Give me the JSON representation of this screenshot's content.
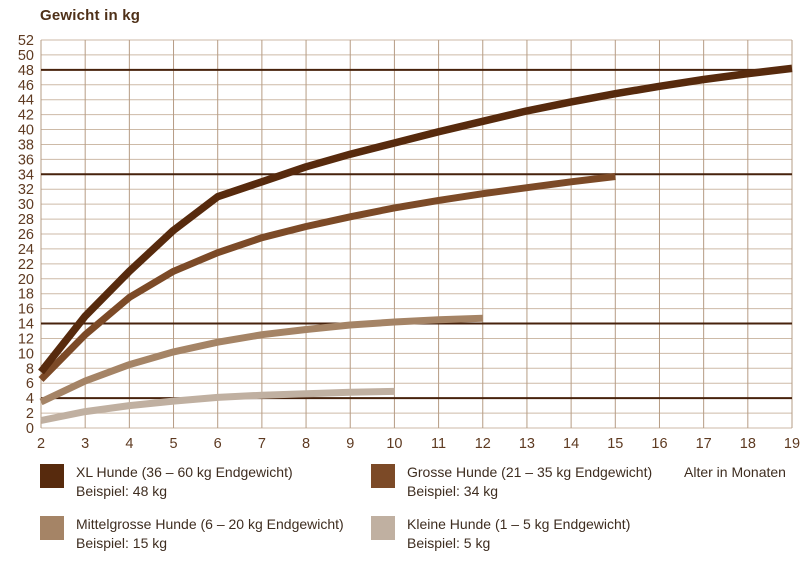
{
  "title": "Gewicht in kg",
  "x_axis_title": "Alter in Monaten",
  "colors": {
    "grid_horizontal": "#cdbaa7",
    "grid_vertical": "#b69c84",
    "reference_line": "#47220c",
    "tick_text": "#5e3a21",
    "title_text": "#4e3018",
    "legend_text": "#3e2d20",
    "background": "#ffffff"
  },
  "chart_data": {
    "type": "line",
    "title": "Gewicht in kg",
    "xlabel": "Alter in Monaten",
    "ylabel": "Gewicht in kg",
    "xlim": [
      2,
      19
    ],
    "ylim": [
      0,
      52
    ],
    "x_ticks": [
      2,
      3,
      4,
      5,
      6,
      7,
      8,
      9,
      10,
      11,
      12,
      13,
      14,
      15,
      16,
      17,
      18,
      19
    ],
    "y_ticks": [
      0,
      2,
      4,
      6,
      8,
      10,
      12,
      14,
      16,
      18,
      20,
      22,
      24,
      26,
      28,
      30,
      32,
      34,
      36,
      38,
      40,
      42,
      44,
      46,
      48,
      50,
      52
    ],
    "grid": true,
    "legend_position": "bottom",
    "reference_lines": [
      48,
      34,
      14,
      4
    ],
    "series": [
      {
        "name": "XL Hunde (36 – 60 kg Endgewicht)",
        "example": "Beispiel: 48 kg",
        "color": "#572a0d",
        "width": 7.5,
        "x": [
          2,
          3,
          4,
          5,
          6,
          7,
          8,
          9,
          10,
          11,
          12,
          13,
          14,
          15,
          16,
          17,
          18,
          19
        ],
        "y": [
          7.5,
          15,
          21,
          26.5,
          31,
          33,
          35,
          36.7,
          38.2,
          39.7,
          41.1,
          42.5,
          43.7,
          44.8,
          45.8,
          46.7,
          47.5,
          48.2
        ]
      },
      {
        "name": "Grosse Hunde (21 – 35 kg Endgewicht)",
        "example": "Beispiel: 34 kg",
        "color": "#7c4a27",
        "width": 7,
        "x": [
          2,
          3,
          4,
          5,
          6,
          7,
          8,
          9,
          10,
          11,
          12,
          13,
          14,
          15
        ],
        "y": [
          6.5,
          12.5,
          17.5,
          21,
          23.5,
          25.5,
          27,
          28.3,
          29.5,
          30.5,
          31.4,
          32.2,
          33,
          33.7
        ]
      },
      {
        "name": "Mittelgrosse Hunde (6 – 20 kg Endgewicht)",
        "example": "Beispiel: 15 kg",
        "color": "#a58466",
        "width": 7,
        "x": [
          2,
          3,
          4,
          5,
          6,
          7,
          8,
          9,
          10,
          11,
          12
        ],
        "y": [
          3.5,
          6.3,
          8.5,
          10.2,
          11.5,
          12.5,
          13.2,
          13.8,
          14.2,
          14.5,
          14.7
        ]
      },
      {
        "name": "Kleine Hunde (1 – 5 kg Endgewicht)",
        "example": "Beispiel: 5 kg",
        "color": "#c0b0a1",
        "width": 7,
        "x": [
          2,
          3,
          4,
          5,
          6,
          7,
          8,
          9,
          10
        ],
        "y": [
          1,
          2.2,
          3,
          3.6,
          4.1,
          4.4,
          4.6,
          4.8,
          4.9
        ]
      }
    ]
  },
  "legend": [
    {
      "label": "XL Hunde (36 – 60 kg Endgewicht)",
      "example": "Beispiel: 48 kg"
    },
    {
      "label": "Grosse Hunde (21 – 35 kg Endgewicht)",
      "example": "Beispiel: 34 kg"
    },
    {
      "label": "Mittelgrosse Hunde (6 – 20 kg Endgewicht)",
      "example": "Beispiel: 15 kg"
    },
    {
      "label": "Kleine Hunde (1 – 5 kg Endgewicht)",
      "example": "Beispiel: 5 kg"
    }
  ]
}
